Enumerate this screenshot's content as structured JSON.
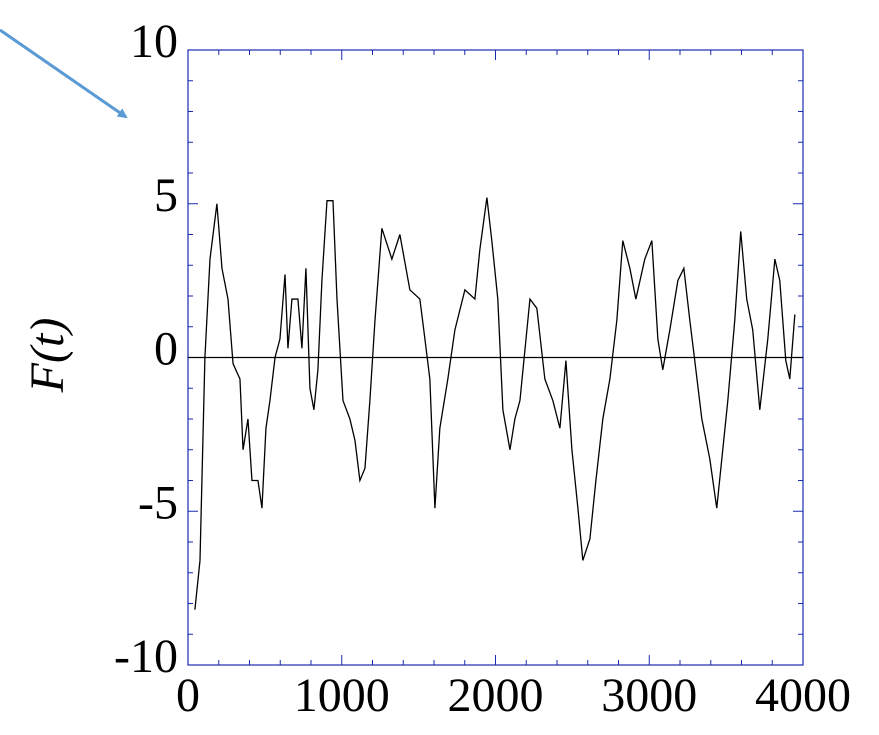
{
  "chart_data": {
    "type": "line",
    "y_label": "F(t)",
    "x": [
      45,
      78,
      110,
      143,
      188,
      221,
      260,
      293,
      338,
      358,
      390,
      416,
      455,
      481,
      507,
      533,
      566,
      598,
      631,
      650,
      676,
      715,
      741,
      767,
      793,
      819,
      845,
      871,
      904,
      943,
      969,
      1008,
      1053,
      1086,
      1118,
      1151,
      1183,
      1216,
      1261,
      1326,
      1378,
      1443,
      1508,
      1541,
      1573,
      1606,
      1638,
      1690,
      1736,
      1801,
      1866,
      1898,
      1944,
      1976,
      2015,
      2048,
      2094,
      2126,
      2159,
      2224,
      2269,
      2321,
      2373,
      2419,
      2458,
      2497,
      2536,
      2568,
      2614,
      2653,
      2698,
      2744,
      2789,
      2828,
      2874,
      2913,
      2971,
      3017,
      3056,
      3088,
      3134,
      3186,
      3225,
      3264,
      3296,
      3342,
      3394,
      3439,
      3472,
      3511,
      3556,
      3595,
      3634,
      3673,
      3719,
      3771,
      3817,
      3849,
      3888,
      3914,
      3947
    ],
    "series": [
      {
        "color": "#000000",
        "values": [
          -8.2,
          -6.6,
          0,
          3.2,
          5.0,
          2.9,
          1.9,
          -0.2,
          -0.7,
          -3.0,
          -2.0,
          -4.0,
          -4.0,
          -4.9,
          -2.3,
          -1.4,
          0,
          0.6,
          2.7,
          0.3,
          1.9,
          1.9,
          0.3,
          2.9,
          -1.0,
          -1.7,
          -0.4,
          2.5,
          5.1,
          5.1,
          1.9,
          -1.4,
          -2.0,
          -2.7,
          -4.0,
          -3.6,
          -1.4,
          1.2,
          4.2,
          3.2,
          4.0,
          2.2,
          1.9,
          0.6,
          -0.7,
          -4.9,
          -2.3,
          -0.7,
          0.9,
          2.2,
          1.9,
          3.5,
          5.2,
          3.8,
          1.9,
          -1.7,
          -3.0,
          -2.0,
          -1.4,
          1.9,
          1.6,
          -0.7,
          -1.4,
          -2.3,
          -0.1,
          -3.0,
          -4.9,
          -6.6,
          -5.9,
          -4.0,
          -2.0,
          -0.7,
          1.2,
          3.8,
          2.9,
          1.9,
          3.2,
          3.8,
          0.6,
          -0.4,
          0.9,
          2.5,
          2.9,
          1.2,
          -0.1,
          -2.0,
          -3.3,
          -4.9,
          -3.3,
          -1.4,
          1.2,
          4.1,
          1.9,
          0.9,
          -1.7,
          0.6,
          3.2,
          2.5,
          -0.1,
          -0.7,
          1.4
        ]
      }
    ],
    "xlim": [
      0,
      4000
    ],
    "xticks": [
      0,
      1000,
      2000,
      3000,
      4000
    ],
    "ylim": [
      -10,
      10
    ],
    "yticks": [
      -10,
      -5,
      0,
      5,
      10
    ],
    "zero_line": true,
    "axis_color": "#1a2ab0",
    "mirror_ticks": true
  }
}
